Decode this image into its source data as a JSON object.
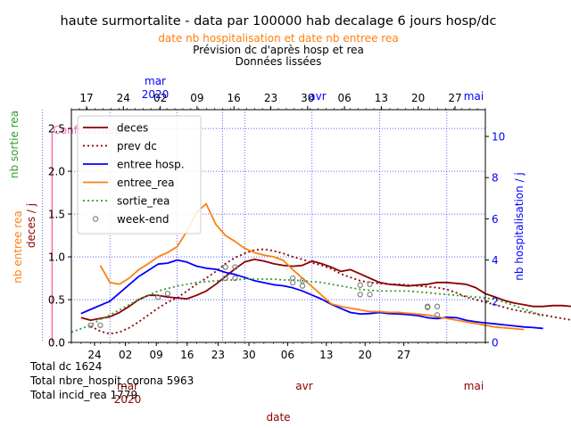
{
  "colors": {
    "deces": "#8b0000",
    "prev_dc": "#8b0000",
    "entree_hosp": "#0000ff",
    "entree_rea": "#ff7f0e",
    "sortie_rea": "#2ca02c",
    "week_end": "#808080",
    "confinement": "#ff69b4",
    "grid": "#0000ff",
    "date_label": "#8b0000",
    "axis_text": "#000000"
  },
  "chart_data": {
    "type": "line",
    "title": "haute surmortalite - data par 100000 hab decalage 6 jours hosp/dc",
    "subtitle_rea": "date nb hospitalisation et date nb entree rea",
    "subtitle_1": "Prévision dc d'après hosp et rea",
    "subtitle_2": "Données lissées",
    "xlabel": "date",
    "ylabel_left_top": "nb sortie rea",
    "ylabel_left_rea": "nb entree rea",
    "ylabel_left_dc": "deces / j",
    "ylabel_right": "nb hospitalisation / j",
    "x_range_bottom": [
      "2020-03-19",
      "2020-05-01"
    ],
    "x_range_top": [
      "2020-03-13",
      "2020-05-04"
    ],
    "ylim_left": [
      0,
      2.72
    ],
    "ylim_right": [
      0,
      11.3
    ],
    "yticks_left": [
      "0.0",
      "0.5",
      "1.0",
      "1.5",
      "2.0",
      "2.5"
    ],
    "yticks_right": [
      "0",
      "2",
      "4",
      "6",
      "8",
      "10"
    ],
    "bottom_day_ticks": [
      "24",
      "02",
      "09",
      "16",
      "23",
      "30",
      "06",
      "13",
      "20",
      "27"
    ],
    "bottom_month_labels": {
      "mar": "mar",
      "year": "2020",
      "avr": "avr",
      "mai": "mai"
    },
    "top_day_ticks": [
      "17",
      "24",
      "02",
      "09",
      "16",
      "23",
      "30",
      "06",
      "13",
      "20",
      "27"
    ],
    "top_month_labels": {
      "mar": "mar",
      "year": "2020",
      "avr": "avr",
      "mai": "mai"
    },
    "grid": true,
    "legend_position": "upper-left",
    "legend": [
      "deces",
      "prev dc",
      "entree hosp.",
      "entree_rea",
      "sortie_rea",
      "week-end"
    ],
    "annotation": {
      "text": "Confinement",
      "date": "2020-03-17"
    },
    "series": [
      {
        "name": "deces",
        "axis": "left",
        "x_start": "2020-03-20",
        "values": [
          0.29,
          0.26,
          0.28,
          0.3,
          0.35,
          0.42,
          0.5,
          0.55,
          0.55,
          0.53,
          0.52,
          0.51,
          0.55,
          0.6,
          0.68,
          0.77,
          0.86,
          0.94,
          0.97,
          0.95,
          0.92,
          0.9,
          0.89,
          0.9,
          0.95,
          0.92,
          0.88,
          0.83,
          0.85,
          0.8,
          0.75,
          0.7,
          0.68,
          0.67,
          0.66,
          0.67,
          0.68,
          0.7,
          0.7,
          0.69,
          0.68,
          0.64,
          0.57,
          0.53,
          0.49,
          0.46,
          0.44,
          0.42,
          0.42,
          0.43,
          0.43,
          0.42
        ]
      },
      {
        "name": "prev dc",
        "axis": "left",
        "x_start": "2020-03-21",
        "values": [
          0.19,
          0.13,
          0.1,
          0.12,
          0.17,
          0.24,
          0.32,
          0.4,
          0.47,
          0.52,
          0.6,
          0.68,
          0.75,
          0.83,
          0.92,
          0.99,
          1.04,
          1.08,
          1.09,
          1.07,
          1.04,
          1.0,
          0.97,
          0.93,
          0.9,
          0.86,
          0.8,
          0.76,
          0.72,
          0.7,
          0.69,
          0.68,
          0.68,
          0.67,
          0.66,
          0.65,
          0.64,
          0.62,
          0.58,
          0.53,
          0.5,
          0.47,
          0.44,
          0.41,
          0.38,
          0.36,
          0.34,
          0.32,
          0.3,
          0.28,
          0.26,
          0.24,
          0.22,
          0.2
        ]
      },
      {
        "name": "entree hosp.",
        "axis": "right",
        "x_start": "2020-03-20",
        "values": [
          1.4,
          1.6,
          1.8,
          2.0,
          2.4,
          2.8,
          3.2,
          3.5,
          3.8,
          3.85,
          4.0,
          3.9,
          3.7,
          3.6,
          3.55,
          3.4,
          3.3,
          3.15,
          3.0,
          2.9,
          2.8,
          2.75,
          2.65,
          2.5,
          2.3,
          2.1,
          1.85,
          1.65,
          1.45,
          1.38,
          1.4,
          1.45,
          1.4,
          1.38,
          1.35,
          1.3,
          1.2,
          1.15,
          1.22,
          1.2,
          1.08,
          1.0,
          0.95,
          0.9,
          0.85,
          0.8,
          0.75,
          0.72,
          0.68
        ]
      },
      {
        "name": "entree_rea",
        "axis": "left",
        "x_start": "2020-03-22",
        "values": [
          0.9,
          0.7,
          0.68,
          0.75,
          0.85,
          0.92,
          1.0,
          1.05,
          1.12,
          1.3,
          1.52,
          1.62,
          1.38,
          1.25,
          1.18,
          1.1,
          1.05,
          1.02,
          1.0,
          0.96,
          0.85,
          0.75,
          0.65,
          0.55,
          0.45,
          0.42,
          0.4,
          0.38,
          0.36,
          0.36,
          0.35,
          0.35,
          0.34,
          0.33,
          0.32,
          0.3,
          0.28,
          0.26,
          0.24,
          0.22,
          0.2,
          0.18,
          0.17,
          0.16,
          0.15
        ]
      },
      {
        "name": "sortie_rea",
        "axis": "left",
        "x_start": "2020-03-19",
        "values": [
          0.12,
          0.16,
          0.2,
          0.27,
          0.32,
          0.38,
          0.44,
          0.5,
          0.55,
          0.6,
          0.63,
          0.66,
          0.68,
          0.7,
          0.71,
          0.72,
          0.73,
          0.73,
          0.74,
          0.74,
          0.74,
          0.74,
          0.73,
          0.73,
          0.72,
          0.71,
          0.7,
          0.68,
          0.66,
          0.64,
          0.62,
          0.61,
          0.6,
          0.6,
          0.6,
          0.6,
          0.59,
          0.58,
          0.57,
          0.56,
          0.55,
          0.54,
          0.53,
          0.52,
          0.5,
          0.47,
          0.43,
          0.39,
          0.35,
          0.3
        ]
      },
      {
        "name": "week-end",
        "axis": "left",
        "points": [
          [
            "2020-03-21",
            0.2
          ],
          [
            "2020-03-22",
            0.2
          ],
          [
            "2020-03-28",
            0.53
          ],
          [
            "2020-03-29",
            0.57
          ],
          [
            "2020-04-04",
            0.88
          ],
          [
            "2020-04-05",
            0.88
          ],
          [
            "2020-04-04",
            0.75
          ],
          [
            "2020-04-05",
            0.75
          ],
          [
            "2020-04-11",
            0.75
          ],
          [
            "2020-04-12",
            0.72
          ],
          [
            "2020-04-11",
            0.7
          ],
          [
            "2020-04-12",
            0.66
          ],
          [
            "2020-04-18",
            0.67
          ],
          [
            "2020-04-19",
            0.68
          ],
          [
            "2020-04-18",
            0.56
          ],
          [
            "2020-04-19",
            0.56
          ],
          [
            "2020-04-25",
            0.42
          ],
          [
            "2020-04-26",
            0.42
          ],
          [
            "2020-04-25",
            0.41
          ],
          [
            "2020-04-26",
            0.32
          ]
        ]
      }
    ]
  },
  "totals": {
    "dc": "Total dc 1624",
    "hospit": "Total nbre_hospit_corona 5963",
    "rea": "Total incid_rea 1779"
  }
}
